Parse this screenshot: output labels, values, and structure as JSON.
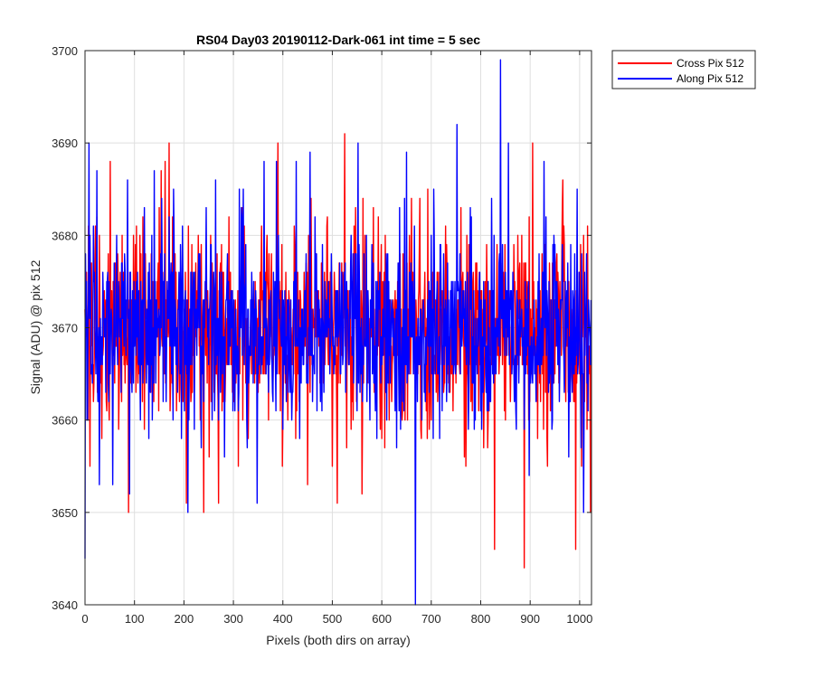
{
  "chart_data": {
    "type": "line",
    "title": "RS04 Day03 20190112-Dark-061 int time = 5 sec",
    "xlabel": "Pixels (both dirs on array)",
    "ylabel": "Signal (ADU) @ pix 512",
    "xlim": [
      0,
      1024
    ],
    "ylim": [
      3640,
      3700
    ],
    "xticks": [
      0,
      100,
      200,
      300,
      400,
      500,
      600,
      700,
      800,
      900,
      1000
    ],
    "yticks": [
      3640,
      3650,
      3660,
      3670,
      3680,
      3690,
      3700
    ],
    "grid": true,
    "legend_position": "outside-top-right",
    "noise_baseline": 3670,
    "noise_spread": 5,
    "series": [
      {
        "name": "Cross Pix 512",
        "color": "#ff0000",
        "points": [
          [
            0,
            3672
          ],
          [
            3,
            3676
          ],
          [
            6,
            3660
          ],
          [
            10,
            3655
          ],
          [
            16,
            3666
          ],
          [
            24,
            3682
          ],
          [
            34,
            3658
          ],
          [
            48,
            3662
          ],
          [
            60,
            3664
          ],
          [
            75,
            3680
          ],
          [
            88,
            3650
          ],
          [
            100,
            3675
          ],
          [
            120,
            3659
          ],
          [
            135,
            3670
          ],
          [
            150,
            3683
          ],
          [
            162,
            3688
          ],
          [
            170,
            3690
          ],
          [
            185,
            3661
          ],
          [
            205,
            3651
          ],
          [
            215,
            3663
          ],
          [
            240,
            3650
          ],
          [
            255,
            3662
          ],
          [
            270,
            3651
          ],
          [
            290,
            3668
          ],
          [
            310,
            3655
          ],
          [
            330,
            3658
          ],
          [
            350,
            3663
          ],
          [
            370,
            3674
          ],
          [
            390,
            3690
          ],
          [
            410,
            3660
          ],
          [
            430,
            3676
          ],
          [
            450,
            3653
          ],
          [
            470,
            3672
          ],
          [
            490,
            3682
          ],
          [
            500,
            3655
          ],
          [
            510,
            3651
          ],
          [
            525,
            3691
          ],
          [
            540,
            3662
          ],
          [
            560,
            3652
          ],
          [
            580,
            3677
          ],
          [
            600,
            3658
          ],
          [
            620,
            3662
          ],
          [
            640,
            3661
          ],
          [
            660,
            3684
          ],
          [
            680,
            3658
          ],
          [
            700,
            3660
          ],
          [
            720,
            3668
          ],
          [
            740,
            3672
          ],
          [
            760,
            3683
          ],
          [
            780,
            3662
          ],
          [
            800,
            3674
          ],
          [
            815,
            3660
          ],
          [
            828,
            3646
          ],
          [
            845,
            3670
          ],
          [
            860,
            3662
          ],
          [
            875,
            3680
          ],
          [
            888,
            3644
          ],
          [
            905,
            3690
          ],
          [
            920,
            3674
          ],
          [
            935,
            3655
          ],
          [
            950,
            3665
          ],
          [
            965,
            3683
          ],
          [
            980,
            3662
          ],
          [
            992,
            3646
          ],
          [
            1005,
            3671
          ],
          [
            1015,
            3659
          ],
          [
            1022,
            3650
          ]
        ]
      },
      {
        "name": "Along Pix 512",
        "color": "#0000ff",
        "points": [
          [
            0,
            3645
          ],
          [
            4,
            3660
          ],
          [
            8,
            3690
          ],
          [
            14,
            3666
          ],
          [
            28,
            3670
          ],
          [
            44,
            3675
          ],
          [
            56,
            3653
          ],
          [
            70,
            3669
          ],
          [
            86,
            3686
          ],
          [
            90,
            3652
          ],
          [
            110,
            3668
          ],
          [
            125,
            3672
          ],
          [
            140,
            3687
          ],
          [
            158,
            3662
          ],
          [
            178,
            3660
          ],
          [
            195,
            3658
          ],
          [
            208,
            3650
          ],
          [
            225,
            3672
          ],
          [
            245,
            3683
          ],
          [
            262,
            3661
          ],
          [
            282,
            3656
          ],
          [
            300,
            3669
          ],
          [
            320,
            3685
          ],
          [
            340,
            3664
          ],
          [
            362,
            3688
          ],
          [
            380,
            3662
          ],
          [
            400,
            3659
          ],
          [
            420,
            3663
          ],
          [
            440,
            3672
          ],
          [
            455,
            3689
          ],
          [
            478,
            3666
          ],
          [
            495,
            3665
          ],
          [
            515,
            3677
          ],
          [
            535,
            3674
          ],
          [
            552,
            3690
          ],
          [
            570,
            3662
          ],
          [
            590,
            3658
          ],
          [
            610,
            3660
          ],
          [
            630,
            3657
          ],
          [
            650,
            3689
          ],
          [
            668,
            3640
          ],
          [
            686,
            3663
          ],
          [
            705,
            3685
          ],
          [
            722,
            3661
          ],
          [
            740,
            3670
          ],
          [
            752,
            3692
          ],
          [
            770,
            3668
          ],
          [
            790,
            3671
          ],
          [
            805,
            3663
          ],
          [
            822,
            3684
          ],
          [
            840,
            3699
          ],
          [
            856,
            3690
          ],
          [
            872,
            3659
          ],
          [
            884,
            3668
          ],
          [
            898,
            3654
          ],
          [
            912,
            3662
          ],
          [
            928,
            3688
          ],
          [
            945,
            3660
          ],
          [
            962,
            3672
          ],
          [
            978,
            3656
          ],
          [
            995,
            3685
          ],
          [
            1008,
            3650
          ],
          [
            1016,
            3668
          ],
          [
            1022,
            3666
          ]
        ]
      }
    ]
  }
}
